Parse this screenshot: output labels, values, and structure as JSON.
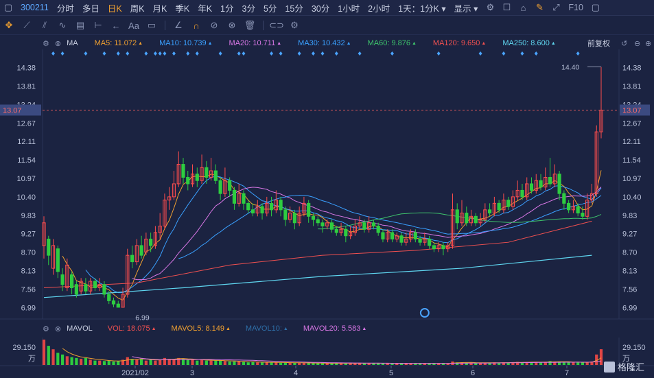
{
  "topbar": {
    "code": "300211",
    "tabs": [
      "分时",
      "多日",
      "日K",
      "周K",
      "月K",
      "季K",
      "年K",
      "1分",
      "3分",
      "5分",
      "15分",
      "30分",
      "1小时",
      "2小时"
    ],
    "active_tab": "日K",
    "period_select": "1天：1分K",
    "display_select": "显示",
    "f10": "F10"
  },
  "ma_bar": {
    "label": "MA",
    "items": [
      {
        "text": "MA5: 11.072",
        "color": "#f0a030"
      },
      {
        "text": "MA10: 10.739",
        "color": "#3aa0ff"
      },
      {
        "text": "MA20: 10.711",
        "color": "#d977e6"
      },
      {
        "text": "MA30: 10.432",
        "color": "#3aa0ff"
      },
      {
        "text": "MA60: 9.876",
        "color": "#3ec46c"
      },
      {
        "text": "MA120: 9.650",
        "color": "#f05050"
      },
      {
        "text": "MA250: 8.600",
        "color": "#5fd6f0"
      }
    ],
    "adjust": "前复权"
  },
  "vol_bar": {
    "label": "MAVOL",
    "items": [
      {
        "text": "VOL: 18.075",
        "color": "#f05050"
      },
      {
        "text": "MAVOL5: 8.149",
        "color": "#f0a030"
      },
      {
        "text": "MAVOL10:",
        "color": "#2e6fa8"
      },
      {
        "text": "MAVOL20: 5.583",
        "color": "#d977e6"
      }
    ]
  },
  "colors": {
    "up": "#ff4d4d",
    "down": "#2ecc40",
    "bg": "#1b2341",
    "grid": "#2a3357"
  },
  "chart_data": {
    "type": "candlestick",
    "y_ticks": [
      "14.38",
      "13.81",
      "13.24",
      "12.67",
      "12.11",
      "11.54",
      "10.97",
      "10.40",
      "9.83",
      "9.27",
      "8.70",
      "8.13",
      "7.56",
      "6.99"
    ],
    "ylim": [
      6.85,
      14.6
    ],
    "current_price": "13.07",
    "max_label": "14.40",
    "min_label": "6.99",
    "x_labels": [
      "2021/02",
      "3",
      "4",
      "5",
      "6",
      "7"
    ],
    "vol_tick": "29.150",
    "vol_unit": "万",
    "watermark": "格隆汇",
    "ma_values": {
      "MA5": 11.072,
      "MA10": 10.739,
      "MA20": 10.711,
      "MA30": 10.432,
      "MA60": 9.876,
      "MA120": 9.65,
      "MA250": 8.6
    },
    "vol_values": {
      "VOL": 18.075,
      "MAVOL5": 8.149,
      "MAVOL20": 5.583
    },
    "candles": [
      [
        8.9,
        9.6,
        9.8,
        8.5
      ],
      [
        9.1,
        8.6,
        9.2,
        8.3
      ],
      [
        8.2,
        8.9,
        9.1,
        8.0
      ],
      [
        8.8,
        8.1,
        8.9,
        7.9
      ],
      [
        8.0,
        7.7,
        8.2,
        7.5
      ],
      [
        7.6,
        8.3,
        8.5,
        7.5
      ],
      [
        8.0,
        7.6,
        8.1,
        7.4
      ],
      [
        7.7,
        7.4,
        7.8,
        7.3
      ],
      [
        7.5,
        7.8,
        7.9,
        7.4
      ],
      [
        7.7,
        7.5,
        7.9,
        7.4
      ],
      [
        7.5,
        7.8,
        7.9,
        7.4
      ],
      [
        7.8,
        7.6,
        7.9,
        7.5
      ],
      [
        7.6,
        7.7,
        7.9,
        7.5
      ],
      [
        7.7,
        7.4,
        7.8,
        7.3
      ],
      [
        7.4,
        7.2,
        7.5,
        7.1
      ],
      [
        7.2,
        7.1,
        7.3,
        7.0
      ],
      [
        7.1,
        7.0,
        7.2,
        6.99
      ],
      [
        7.0,
        7.4,
        7.6,
        6.99
      ],
      [
        7.4,
        8.6,
        8.8,
        7.3
      ],
      [
        8.6,
        8.4,
        8.9,
        8.2
      ],
      [
        8.4,
        8.9,
        9.1,
        8.3
      ],
      [
        8.9,
        8.6,
        9.2,
        8.5
      ],
      [
        8.7,
        9.1,
        9.3,
        8.6
      ],
      [
        9.1,
        8.9,
        9.3,
        8.7
      ],
      [
        8.9,
        9.3,
        9.5,
        8.8
      ],
      [
        9.3,
        9.5,
        9.9,
        9.1
      ],
      [
        9.5,
        10.3,
        10.5,
        9.4
      ],
      [
        10.3,
        10.4,
        10.7,
        10.0
      ],
      [
        10.4,
        10.8,
        11.2,
        10.3
      ],
      [
        10.8,
        11.4,
        11.8,
        10.7
      ],
      [
        11.4,
        11.0,
        11.6,
        10.8
      ],
      [
        11.0,
        10.8,
        11.2,
        10.6
      ],
      [
        10.8,
        11.1,
        11.4,
        10.7
      ],
      [
        11.1,
        10.9,
        11.3,
        10.7
      ],
      [
        10.9,
        11.3,
        11.7,
        10.8
      ],
      [
        11.3,
        11.0,
        11.5,
        10.8
      ],
      [
        11.0,
        11.2,
        11.6,
        10.9
      ],
      [
        11.2,
        10.9,
        11.4,
        10.8
      ],
      [
        10.9,
        10.5,
        11.0,
        10.3
      ],
      [
        10.5,
        10.9,
        11.3,
        10.4
      ],
      [
        10.9,
        10.6,
        11.0,
        10.4
      ],
      [
        10.6,
        10.2,
        10.7,
        10.0
      ],
      [
        10.2,
        10.5,
        10.8,
        10.1
      ],
      [
        10.5,
        10.2,
        10.6,
        10.0
      ],
      [
        10.2,
        10.0,
        10.3,
        9.9
      ],
      [
        10.0,
        9.9,
        10.2,
        9.8
      ],
      [
        9.9,
        10.1,
        10.3,
        9.8
      ],
      [
        10.1,
        9.9,
        10.2,
        9.7
      ],
      [
        9.9,
        10.2,
        10.4,
        9.8
      ],
      [
        10.2,
        10.0,
        10.4,
        9.8
      ],
      [
        10.0,
        10.3,
        10.6,
        9.9
      ],
      [
        10.3,
        10.0,
        10.4,
        9.8
      ],
      [
        10.0,
        9.7,
        10.1,
        9.5
      ],
      [
        9.7,
        9.9,
        10.1,
        9.6
      ],
      [
        9.9,
        9.6,
        10.0,
        9.4
      ],
      [
        9.6,
        9.9,
        10.1,
        9.5
      ],
      [
        9.9,
        10.2,
        10.4,
        9.8
      ],
      [
        10.2,
        9.8,
        10.3,
        9.6
      ],
      [
        9.8,
        9.7,
        9.9,
        9.5
      ],
      [
        9.7,
        9.6,
        9.8,
        9.5
      ],
      [
        9.6,
        9.5,
        9.7,
        9.3
      ],
      [
        9.5,
        9.6,
        9.7,
        9.4
      ],
      [
        9.6,
        9.4,
        9.7,
        9.3
      ],
      [
        9.4,
        9.3,
        9.5,
        9.2
      ],
      [
        9.3,
        9.4,
        9.6,
        9.2
      ],
      [
        9.4,
        9.2,
        9.5,
        9.0
      ],
      [
        9.2,
        9.3,
        9.5,
        9.1
      ],
      [
        9.3,
        9.5,
        9.7,
        9.2
      ],
      [
        9.5,
        9.6,
        9.8,
        9.4
      ],
      [
        9.6,
        9.4,
        9.7,
        9.3
      ],
      [
        9.4,
        9.6,
        9.8,
        9.3
      ],
      [
        9.6,
        9.5,
        9.7,
        9.4
      ],
      [
        9.5,
        9.3,
        9.6,
        9.2
      ],
      [
        9.3,
        9.1,
        9.4,
        9.0
      ],
      [
        9.1,
        9.3,
        9.4,
        9.0
      ],
      [
        9.3,
        9.1,
        9.4,
        9.0
      ],
      [
        9.1,
        9.2,
        9.3,
        9.0
      ],
      [
        9.2,
        9.0,
        9.3,
        8.9
      ],
      [
        9.0,
        9.1,
        9.3,
        8.9
      ],
      [
        9.1,
        9.3,
        9.4,
        9.0
      ],
      [
        9.3,
        9.1,
        9.4,
        9.0
      ],
      [
        9.1,
        9.0,
        9.2,
        8.9
      ],
      [
        9.0,
        9.1,
        9.3,
        8.9
      ],
      [
        9.1,
        8.9,
        9.2,
        8.8
      ],
      [
        8.9,
        8.8,
        9.0,
        8.7
      ],
      [
        8.8,
        8.9,
        9.0,
        8.7
      ],
      [
        8.9,
        8.8,
        9.0,
        8.6
      ],
      [
        8.8,
        8.9,
        9.0,
        8.7
      ],
      [
        8.9,
        10.0,
        10.5,
        8.8
      ],
      [
        10.0,
        9.6,
        10.2,
        9.4
      ],
      [
        9.6,
        9.9,
        10.3,
        9.5
      ],
      [
        9.9,
        9.6,
        10.1,
        9.5
      ],
      [
        9.6,
        9.8,
        10.0,
        9.5
      ],
      [
        9.8,
        9.6,
        9.9,
        9.5
      ],
      [
        9.6,
        9.7,
        9.9,
        9.5
      ],
      [
        9.7,
        10.0,
        10.2,
        9.6
      ],
      [
        10.0,
        9.9,
        10.2,
        9.8
      ],
      [
        9.9,
        10.2,
        10.4,
        9.8
      ],
      [
        10.2,
        10.0,
        10.3,
        9.9
      ],
      [
        10.0,
        10.3,
        10.5,
        9.9
      ],
      [
        10.3,
        10.1,
        10.4,
        10.0
      ],
      [
        10.1,
        10.4,
        10.6,
        10.0
      ],
      [
        10.4,
        10.6,
        10.9,
        10.3
      ],
      [
        10.6,
        10.4,
        10.8,
        10.3
      ],
      [
        10.4,
        10.8,
        11.0,
        10.3
      ],
      [
        10.8,
        10.6,
        11.0,
        10.5
      ],
      [
        10.6,
        10.9,
        11.1,
        10.5
      ],
      [
        10.9,
        10.7,
        11.1,
        10.6
      ],
      [
        10.7,
        11.0,
        11.3,
        10.6
      ],
      [
        11.0,
        10.8,
        11.6,
        10.7
      ],
      [
        10.8,
        11.1,
        11.4,
        10.7
      ],
      [
        11.1,
        10.5,
        11.2,
        10.3
      ],
      [
        10.5,
        10.2,
        10.6,
        10.0
      ],
      [
        10.2,
        10.0,
        10.3,
        9.9
      ],
      [
        10.0,
        10.1,
        10.3,
        9.9
      ],
      [
        10.1,
        9.9,
        10.2,
        9.8
      ],
      [
        9.9,
        9.8,
        10.1,
        9.7
      ],
      [
        9.8,
        10.3,
        10.5,
        9.7
      ],
      [
        10.3,
        10.5,
        10.8,
        10.2
      ],
      [
        10.5,
        12.4,
        12.6,
        10.4
      ],
      [
        12.4,
        13.07,
        14.4,
        12.2
      ]
    ],
    "volumes": [
      29.1,
      22.0,
      18.0,
      14.0,
      12.0,
      10.0,
      9.0,
      8.0,
      7.0,
      8.0,
      6.0,
      5.0,
      5.0,
      4.5,
      5.0,
      4.0,
      4.5,
      6.0,
      9.0,
      7.0,
      6.0,
      7.0,
      5.0,
      6.0,
      5.0,
      6.0,
      8.0,
      7.0,
      7.0,
      8.0,
      7.0,
      6.0,
      6.0,
      5.0,
      6.0,
      5.0,
      5.0,
      5.0,
      5.0,
      4.5,
      4.0,
      4.0,
      4.0,
      3.5,
      3.0,
      3.5,
      3.0,
      3.0,
      3.0,
      3.0,
      3.0,
      2.5,
      2.5,
      2.5,
      2.5,
      2.5,
      2.5,
      2.0,
      2.0,
      2.0,
      2.0,
      2.0,
      2.0,
      2.0,
      2.0,
      2.0,
      2.0,
      2.0,
      2.0,
      2.0,
      2.0,
      2.0,
      2.0,
      1.8,
      1.8,
      1.8,
      1.8,
      1.8,
      1.8,
      1.8,
      1.8,
      1.8,
      1.8,
      1.8,
      1.8,
      1.8,
      1.8,
      1.8,
      4.0,
      3.0,
      3.0,
      2.5,
      2.5,
      2.5,
      2.5,
      2.5,
      2.5,
      3.0,
      2.5,
      3.0,
      2.5,
      3.0,
      3.5,
      3.0,
      3.5,
      3.0,
      3.5,
      3.0,
      3.5,
      4.5,
      3.5,
      4.0,
      3.5,
      3.0,
      3.0,
      3.0,
      3.0,
      3.5,
      4.0,
      12.0,
      18.075
    ]
  }
}
